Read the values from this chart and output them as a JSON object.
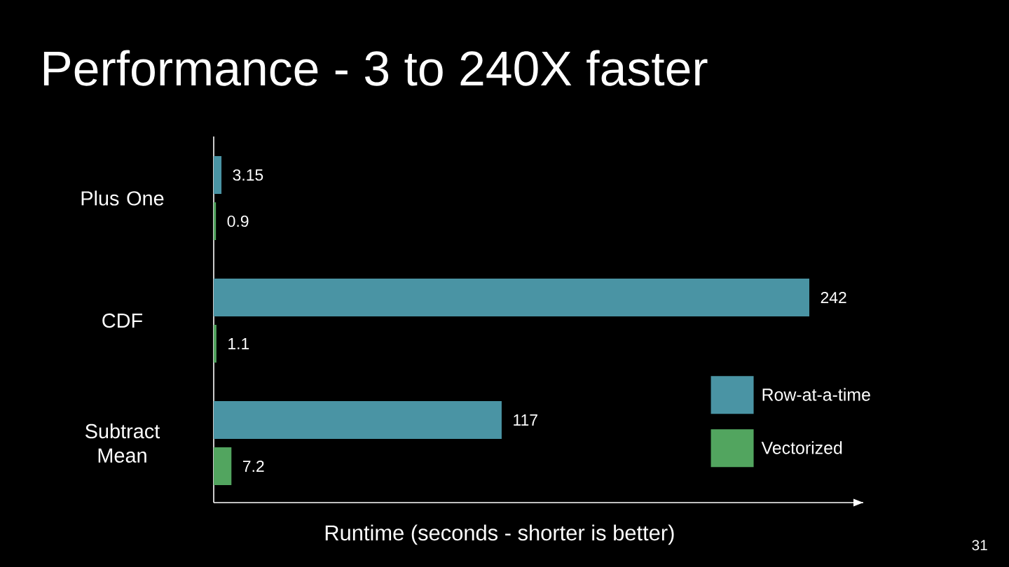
{
  "chart_data": {
    "type": "bar",
    "orientation": "horizontal",
    "title": "Performance - 3 to 240X faster",
    "xlabel": "Runtime (seconds - shorter is better)",
    "categories": [
      "Plus One",
      "CDF",
      "Subtract Mean"
    ],
    "series": [
      {
        "name": "Row-at-a-time",
        "color": "#4a94a4",
        "values": [
          3.15,
          242,
          117
        ]
      },
      {
        "name": "Vectorized",
        "color": "#52a55f",
        "values": [
          0.9,
          1.1,
          7.2
        ]
      }
    ],
    "data_labels": true,
    "legend": "bottom right",
    "tick_labels": "y",
    "annotations": [
      "31"
    ]
  }
}
